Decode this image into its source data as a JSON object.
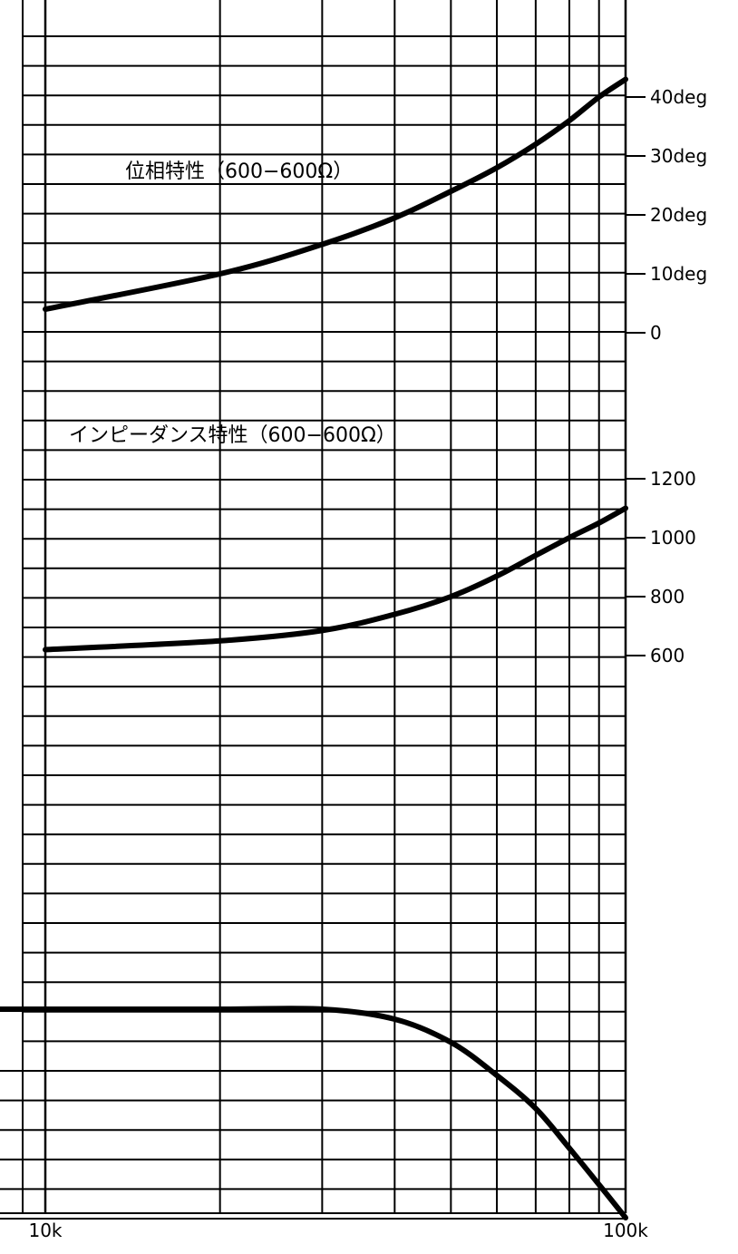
{
  "chart_data": {
    "type": "line",
    "x_scale": "log",
    "xlim": [
      "10k",
      "100k"
    ],
    "x_tick_labels": [
      "10k",
      "100k"
    ],
    "grid": true,
    "phase": {
      "title": "位相特性（600−600Ω）",
      "unit": "deg",
      "ylim": [
        0,
        40
      ],
      "y_tick_labels": [
        "40deg",
        "30deg",
        "20deg",
        "10deg",
        "0"
      ],
      "x": [
        "10k",
        "20k",
        "30k",
        "40k",
        "50k",
        "60k",
        "70k",
        "80k",
        "90k",
        "100k"
      ],
      "values": [
        4,
        10,
        15,
        19.5,
        24,
        28,
        32,
        36,
        40,
        43
      ]
    },
    "impedance": {
      "title": "インピーダンス特性（600−600Ω）",
      "unit": "Ω",
      "ylim": [
        600,
        1200
      ],
      "y_tick_labels": [
        "1200",
        "1000",
        "800",
        "600"
      ],
      "x": [
        "10k",
        "20k",
        "30k",
        "40k",
        "50k",
        "60k",
        "70k",
        "80k",
        "90k",
        "100k"
      ],
      "values": [
        620,
        650,
        685,
        740,
        800,
        870,
        940,
        1000,
        1050,
        1100
      ]
    },
    "frequency_response": {
      "x": [
        "5k",
        "10k",
        "20k",
        "30k",
        "40k",
        "50k",
        "60k",
        "70k",
        "80k",
        "90k",
        "100k"
      ],
      "values": [
        0,
        0,
        0,
        0,
        -0.3,
        -1,
        -2,
        -3,
        -4.2,
        -5.3,
        -6.3
      ]
    }
  }
}
